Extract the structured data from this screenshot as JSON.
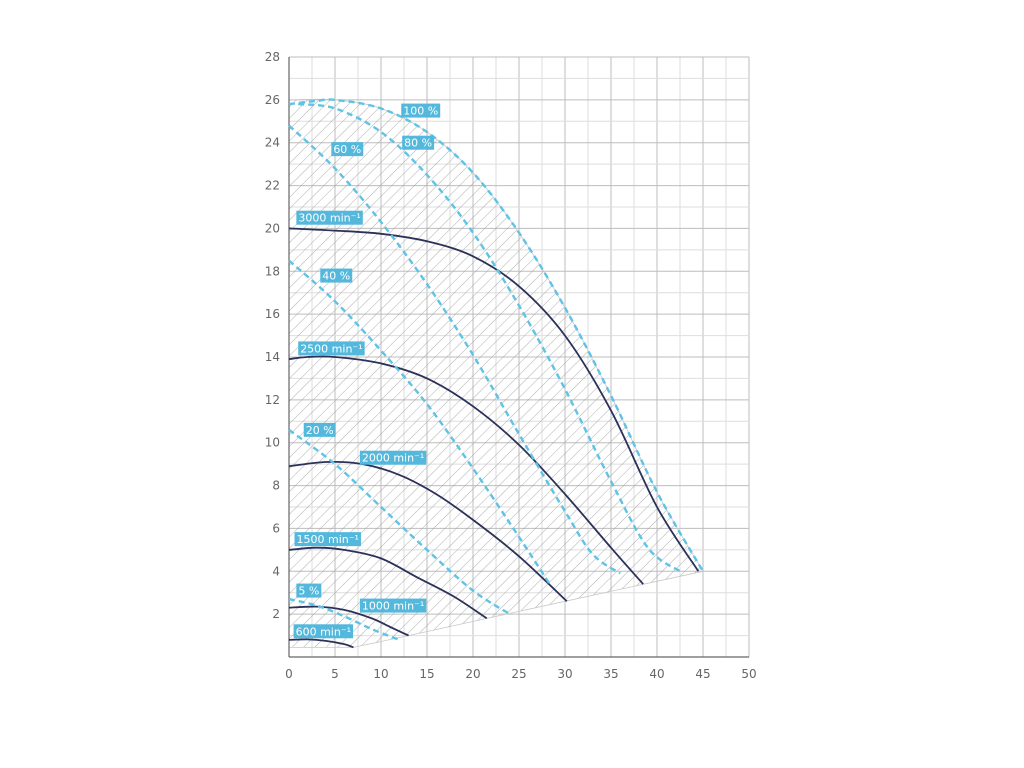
{
  "chart_data": {
    "type": "line",
    "title": "",
    "xlabel": "",
    "ylabel": "",
    "xlim": [
      0,
      50
    ],
    "ylim": [
      0,
      28
    ],
    "x_ticks": [
      0,
      5,
      10,
      15,
      20,
      25,
      30,
      35,
      40,
      45,
      50
    ],
    "y_ticks": [
      2,
      4,
      6,
      8,
      10,
      12,
      14,
      16,
      18,
      20,
      22,
      24,
      26,
      28
    ],
    "grid": true,
    "minor_grid_x_step": 2.5,
    "minor_grid_y_step": 1,
    "operating_range_hatched": true,
    "colors": {
      "speed_curves": "#2b3159",
      "efficiency_curves": "#5ec3e6",
      "label_background": "#54b8dc",
      "grid_major": "#bdbdbd",
      "grid_minor": "#dedede",
      "hatch": "#9a9a9a"
    },
    "speed_series": [
      {
        "label": "3000 min⁻¹",
        "points": [
          [
            0,
            20.0
          ],
          [
            5,
            19.9
          ],
          [
            10,
            19.75
          ],
          [
            15,
            19.4
          ],
          [
            20,
            18.7
          ],
          [
            25,
            17.3
          ],
          [
            30,
            15.0
          ],
          [
            35,
            11.5
          ],
          [
            40,
            7.0
          ],
          [
            44.5,
            4.0
          ]
        ]
      },
      {
        "label": "2500 min⁻¹",
        "points": [
          [
            0,
            13.9
          ],
          [
            2,
            14.0
          ],
          [
            5,
            14.0
          ],
          [
            10,
            13.7
          ],
          [
            15,
            13.0
          ],
          [
            20,
            11.7
          ],
          [
            25,
            9.9
          ],
          [
            30,
            7.6
          ],
          [
            35,
            5.1
          ],
          [
            38.5,
            3.4
          ]
        ]
      },
      {
        "label": "2000 min⁻¹",
        "points": [
          [
            0,
            8.9
          ],
          [
            4,
            9.1
          ],
          [
            8,
            9.0
          ],
          [
            12,
            8.5
          ],
          [
            16,
            7.6
          ],
          [
            20,
            6.4
          ],
          [
            25,
            4.7
          ],
          [
            30.2,
            2.6
          ]
        ]
      },
      {
        "label": "1500 min⁻¹",
        "points": [
          [
            0,
            5.0
          ],
          [
            3,
            5.1
          ],
          [
            6,
            5.0
          ],
          [
            10,
            4.6
          ],
          [
            14,
            3.7
          ],
          [
            18,
            2.8
          ],
          [
            21.5,
            1.8
          ]
        ]
      },
      {
        "label": "1000 min⁻¹",
        "points": [
          [
            0,
            2.3
          ],
          [
            3,
            2.35
          ],
          [
            6,
            2.2
          ],
          [
            9,
            1.8
          ],
          [
            11,
            1.4
          ],
          [
            13,
            1.0
          ]
        ]
      },
      {
        "label": "600 min⁻¹",
        "points": [
          [
            0,
            0.8
          ],
          [
            2,
            0.82
          ],
          [
            4,
            0.75
          ],
          [
            6,
            0.6
          ],
          [
            7,
            0.45
          ]
        ]
      }
    ],
    "efficiency_series": [
      {
        "label": "100 %",
        "points": [
          [
            0,
            25.8
          ],
          [
            3,
            25.95
          ],
          [
            5,
            26.0
          ],
          [
            10,
            25.6
          ],
          [
            15,
            24.5
          ],
          [
            20,
            22.6
          ],
          [
            25,
            19.8
          ],
          [
            30,
            16.3
          ],
          [
            35,
            12.2
          ],
          [
            40,
            7.7
          ],
          [
            45,
            4.0
          ]
        ]
      },
      {
        "label": "80 %",
        "points": [
          [
            1,
            25.8
          ],
          [
            5,
            25.6
          ],
          [
            10,
            24.5
          ],
          [
            15,
            22.5
          ],
          [
            20,
            19.8
          ],
          [
            25,
            16.4
          ],
          [
            30,
            12.5
          ],
          [
            35,
            8.2
          ],
          [
            39,
            5.1
          ],
          [
            42.5,
            4.0
          ]
        ]
      },
      {
        "label": "60 %",
        "points": [
          [
            0,
            24.8
          ],
          [
            5,
            22.8
          ],
          [
            10,
            20.3
          ],
          [
            15,
            17.4
          ],
          [
            20,
            14.1
          ],
          [
            25,
            10.4
          ],
          [
            30,
            6.8
          ],
          [
            33,
            4.8
          ],
          [
            36,
            3.9
          ]
        ]
      },
      {
        "label": "40 %",
        "points": [
          [
            0,
            18.5
          ],
          [
            5,
            16.6
          ],
          [
            10,
            14.3
          ],
          [
            15,
            11.8
          ],
          [
            20,
            8.8
          ],
          [
            25,
            5.6
          ],
          [
            28.5,
            3.3
          ]
        ]
      },
      {
        "label": "20 %",
        "points": [
          [
            0,
            10.6
          ],
          [
            5,
            9.0
          ],
          [
            10,
            7.0
          ],
          [
            15,
            5.0
          ],
          [
            20,
            3.1
          ],
          [
            24,
            2.0
          ]
        ]
      },
      {
        "label": "5 %",
        "points": [
          [
            0,
            2.7
          ],
          [
            3,
            2.4
          ],
          [
            6,
            1.9
          ],
          [
            9,
            1.3
          ],
          [
            12,
            0.8
          ]
        ]
      }
    ],
    "operating_range_outline": [
      [
        0,
        26.0
      ],
      [
        5,
        26.0
      ],
      [
        10,
        25.6
      ],
      [
        15,
        24.5
      ],
      [
        20,
        22.6
      ],
      [
        25,
        19.8
      ],
      [
        30,
        16.3
      ],
      [
        35,
        12.2
      ],
      [
        40,
        7.7
      ],
      [
        45,
        4.0
      ],
      [
        30,
        2.6
      ],
      [
        21.5,
        1.8
      ],
      [
        13,
        1.0
      ],
      [
        7,
        0.45
      ],
      [
        0,
        0.45
      ]
    ],
    "curve_labels": [
      {
        "text": "100 %",
        "x": 12.2,
        "y": 25.5
      },
      {
        "text": "80 %",
        "x": 12.3,
        "y": 24.0
      },
      {
        "text": "60 %",
        "x": 4.6,
        "y": 23.7
      },
      {
        "text": "3000 min⁻¹",
        "x": 0.8,
        "y": 20.5
      },
      {
        "text": "40 %",
        "x": 3.4,
        "y": 17.8
      },
      {
        "text": "2500 min⁻¹",
        "x": 1.0,
        "y": 14.4
      },
      {
        "text": "20 %",
        "x": 1.6,
        "y": 10.6
      },
      {
        "text": "2000 min⁻¹",
        "x": 7.7,
        "y": 9.3
      },
      {
        "text": "1500 min⁻¹",
        "x": 0.6,
        "y": 5.5
      },
      {
        "text": "5 %",
        "x": 0.8,
        "y": 3.1
      },
      {
        "text": "1000 min⁻¹",
        "x": 7.7,
        "y": 2.4
      },
      {
        "text": "600 min⁻¹",
        "x": 0.5,
        "y": 1.2
      }
    ]
  }
}
